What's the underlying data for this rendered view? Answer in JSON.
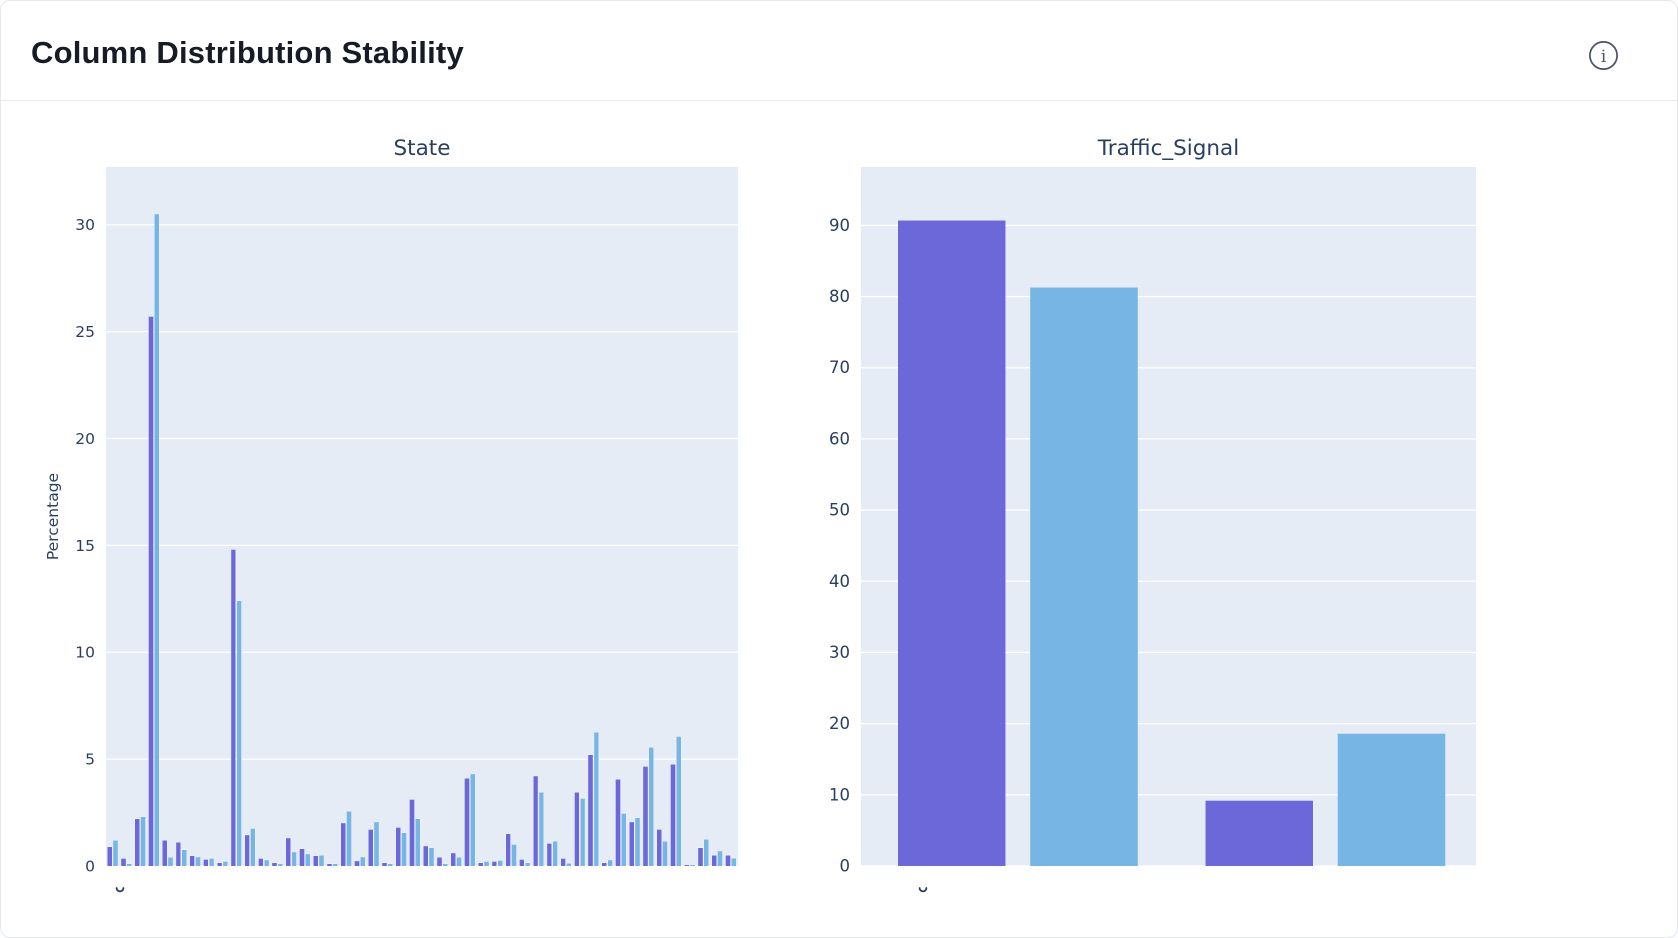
{
  "header": {
    "title": "Column Distribution Stability",
    "info_icon": "info-circle-icon"
  },
  "colors": {
    "series_purple": "#6D68DA",
    "series_blue": "#77B6E4",
    "plot_background": "#E5ECF6",
    "gridline": "#FFFFFF",
    "axis_text": "#2A3F5F",
    "header_text": "#171B26",
    "info_icon": "#4A5166",
    "divider": "#E9EBF0"
  },
  "chart_data": [
    {
      "type": "bar",
      "title": "State",
      "xlabel": "",
      "ylabel": "Percentage",
      "yticks": [
        0,
        5,
        10,
        15,
        20,
        25,
        30
      ],
      "ylim": [
        0,
        32.7
      ],
      "grid": true,
      "legend": "none",
      "n_groups": 46,
      "x_tick_labels_visible": false,
      "x_tick_labels_clipped": true,
      "series": [
        {
          "name": "series-purple",
          "color": "#6D68DA",
          "values": [
            0.9,
            0.35,
            2.2,
            25.7,
            1.2,
            1.1,
            0.47,
            0.3,
            0.15,
            14.8,
            1.45,
            0.35,
            0.15,
            1.3,
            0.8,
            0.47,
            0.1,
            2.0,
            0.23,
            1.7,
            0.15,
            1.8,
            3.1,
            0.93,
            0.4,
            0.6,
            4.1,
            0.15,
            0.2,
            1.5,
            0.3,
            4.2,
            1.05,
            0.35,
            3.45,
            5.2,
            0.15,
            4.05,
            2.05,
            4.65,
            1.7,
            4.75,
            0.05,
            0.85,
            0.5,
            0.5
          ]
        },
        {
          "name": "series-blue",
          "color": "#77B6E4",
          "values": [
            1.2,
            0.1,
            2.3,
            30.5,
            0.4,
            0.75,
            0.42,
            0.35,
            0.2,
            12.4,
            1.75,
            0.28,
            0.1,
            0.65,
            0.55,
            0.5,
            0.1,
            2.55,
            0.42,
            2.05,
            0.1,
            1.55,
            2.2,
            0.85,
            0.1,
            0.4,
            4.3,
            0.2,
            0.25,
            1.0,
            0.15,
            3.45,
            1.15,
            0.12,
            3.15,
            6.25,
            0.28,
            2.45,
            2.25,
            5.55,
            1.15,
            6.05,
            0.05,
            1.25,
            0.7,
            0.36
          ]
        }
      ]
    },
    {
      "type": "bar",
      "title": "Traffic_Signal",
      "xlabel": "",
      "ylabel": "",
      "yticks": [
        0,
        10,
        20,
        30,
        40,
        50,
        60,
        70,
        80,
        90
      ],
      "ylim": [
        0,
        98.2
      ],
      "grid": true,
      "legend": "none",
      "n_groups": 2,
      "x_tick_labels_visible": false,
      "x_tick_labels_clipped": true,
      "series": [
        {
          "name": "series-purple",
          "color": "#6D68DA",
          "values": [
            90.7,
            9.2
          ]
        },
        {
          "name": "series-blue",
          "color": "#77B6E4",
          "values": [
            81.3,
            18.6
          ]
        }
      ]
    }
  ]
}
